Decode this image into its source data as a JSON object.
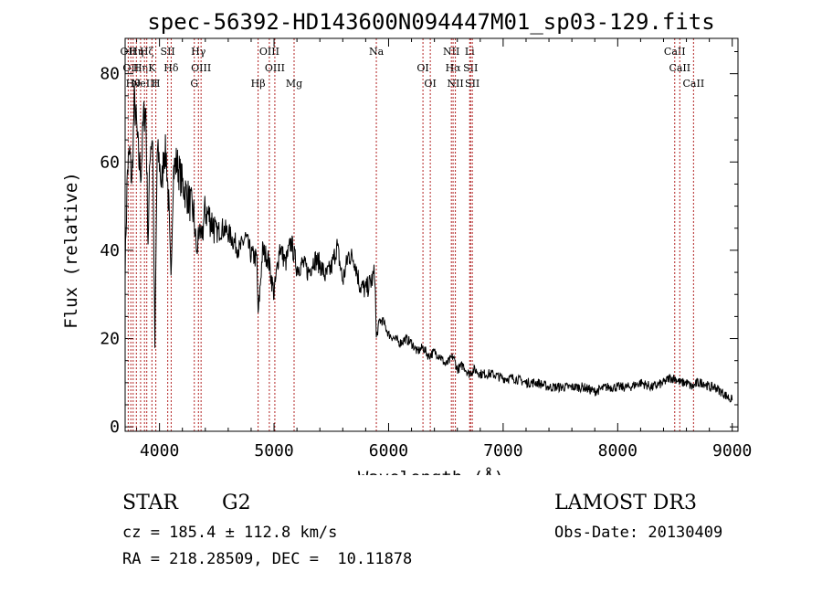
{
  "chart_data": {
    "type": "line",
    "title": "spec-56392-HD143600N094447M01_sp03-129.fits",
    "xlabel": "Wavelength (Å)",
    "ylabel": "Flux (relative)",
    "xlim": [
      3700,
      9050
    ],
    "ylim": [
      -1,
      88
    ],
    "xticks": [
      4000,
      5000,
      6000,
      7000,
      8000,
      9000
    ],
    "yticks": [
      0,
      20,
      40,
      60,
      80
    ],
    "grid": false,
    "series": [
      {
        "name": "flux",
        "x": [
          3700,
          3720,
          3740,
          3760,
          3780,
          3800,
          3820,
          3840,
          3860,
          3880,
          3900,
          3920,
          3940,
          3960,
          3980,
          4000,
          4020,
          4040,
          4060,
          4080,
          4100,
          4120,
          4150,
          4200,
          4250,
          4300,
          4330,
          4340,
          4360,
          4400,
          4450,
          4500,
          4550,
          4600,
          4650,
          4700,
          4750,
          4800,
          4850,
          4861,
          4900,
          4950,
          5000,
          5050,
          5100,
          5150,
          5200,
          5250,
          5300,
          5350,
          5400,
          5450,
          5500,
          5550,
          5600,
          5650,
          5700,
          5750,
          5800,
          5850,
          5880,
          5893,
          5920,
          5950,
          6000,
          6050,
          6100,
          6150,
          6200,
          6250,
          6300,
          6350,
          6400,
          6450,
          6500,
          6563,
          6600,
          6650,
          6700,
          6750,
          6800,
          6900,
          7000,
          7100,
          7200,
          7300,
          7400,
          7500,
          7600,
          7700,
          7800,
          7900,
          8000,
          8100,
          8200,
          8300,
          8400,
          8450,
          8500,
          8550,
          8600,
          8650,
          8700,
          8750,
          8800,
          8850,
          8900,
          8950,
          9000
        ],
        "y": [
          36,
          58,
          62,
          55,
          74,
          68,
          60,
          58,
          70,
          72,
          42,
          64,
          66,
          18,
          62,
          60,
          54,
          63,
          61,
          50,
          33,
          58,
          60,
          55,
          52,
          48,
          38,
          46,
          42,
          49,
          47,
          44,
          45,
          44,
          42,
          40,
          43,
          39,
          38,
          25,
          40,
          38,
          30,
          41,
          37,
          42,
          36,
          37,
          35,
          38,
          37,
          34,
          36,
          41,
          33,
          39,
          38,
          32,
          31,
          33,
          35,
          20,
          24,
          24,
          21,
          20,
          19,
          20,
          19,
          17,
          18,
          16,
          17,
          16,
          14,
          16,
          13,
          14,
          12,
          13,
          12,
          12,
          11,
          11,
          10,
          10,
          9,
          9,
          9,
          9,
          8,
          9,
          9,
          9,
          10,
          9,
          10,
          11,
          11,
          10,
          10,
          9,
          10,
          10,
          9,
          9,
          8,
          7,
          6
        ]
      }
    ],
    "lines": [
      {
        "wl": 3727,
        "label": "OII"
      },
      {
        "wl": 3750,
        "label": "OII"
      },
      {
        "wl": 3770,
        "label": "Hθ"
      },
      {
        "wl": 3798,
        "label": "Hη"
      },
      {
        "wl": 3835,
        "label": "Hη"
      },
      {
        "wl": 3869,
        "label": "NeIII"
      },
      {
        "wl": 3889,
        "label": "Hζ"
      },
      {
        "wl": 3934,
        "label": "K"
      },
      {
        "wl": 3968,
        "label": "H"
      },
      {
        "wl": 4072,
        "label": "SII"
      },
      {
        "wl": 4102,
        "label": "Hδ"
      },
      {
        "wl": 4304,
        "label": "G"
      },
      {
        "wl": 4340,
        "label": "Hγ"
      },
      {
        "wl": 4363,
        "label": "OIII"
      },
      {
        "wl": 4861,
        "label": "Hβ"
      },
      {
        "wl": 4959,
        "label": "OIII"
      },
      {
        "wl": 5007,
        "label": "OIII"
      },
      {
        "wl": 5175,
        "label": "Mg"
      },
      {
        "wl": 5893,
        "label": "Na"
      },
      {
        "wl": 6300,
        "label": "OI"
      },
      {
        "wl": 6364,
        "label": "OI"
      },
      {
        "wl": 6548,
        "label": "NII"
      },
      {
        "wl": 6563,
        "label": "Hα"
      },
      {
        "wl": 6583,
        "label": "NII"
      },
      {
        "wl": 6708,
        "label": "Li"
      },
      {
        "wl": 6716,
        "label": "SII"
      },
      {
        "wl": 6731,
        "label": "SII"
      },
      {
        "wl": 8498,
        "label": "CaII"
      },
      {
        "wl": 8542,
        "label": "CaII"
      },
      {
        "wl": 8662,
        "label": "CaII"
      }
    ]
  },
  "info": {
    "object_type": "STAR",
    "subclass": "G2",
    "survey": "LAMOST DR3",
    "cz": "cz = 185.4 ± 112.8 km/s",
    "obs_date": "Obs-Date: 20130409",
    "coords": "RA = 218.28509, DEC =  10.11878"
  },
  "colors": {
    "line_marker": "#b22222",
    "spectrum": "#000000"
  }
}
